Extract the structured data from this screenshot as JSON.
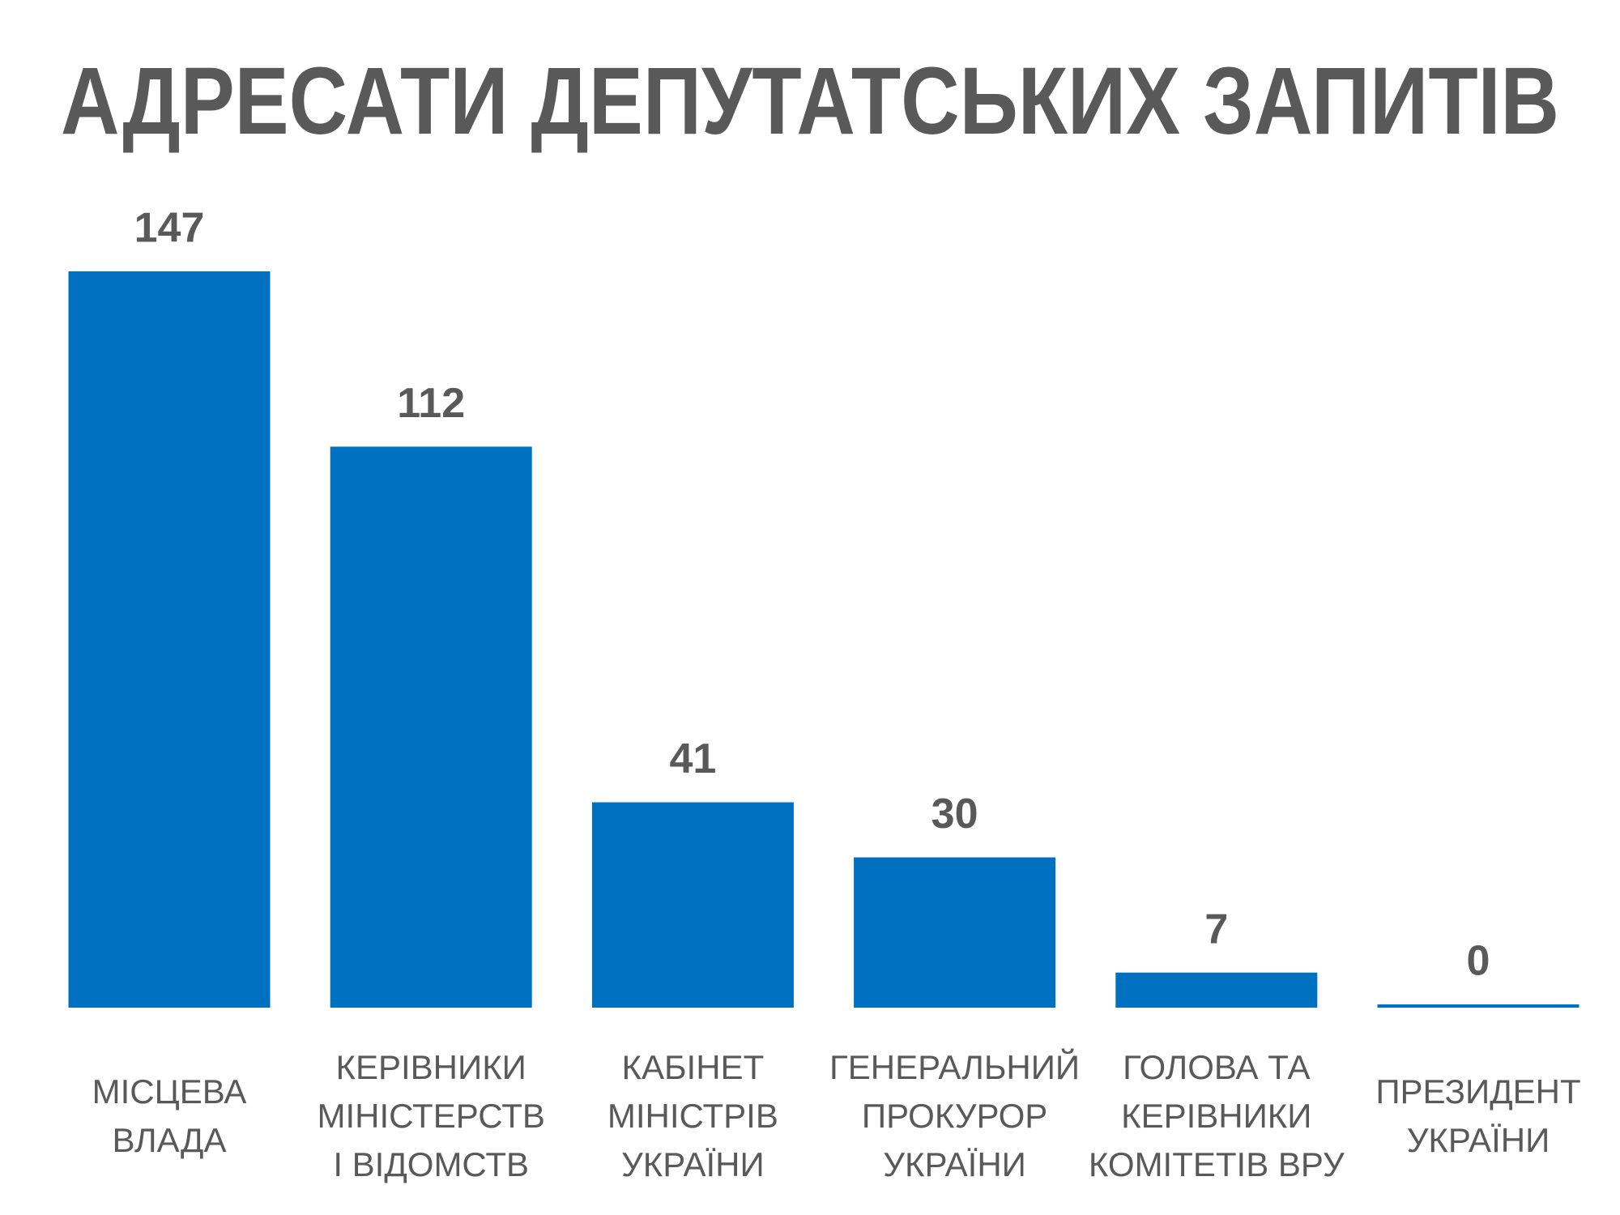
{
  "chart_data": {
    "type": "bar",
    "title": "АДРЕСАТИ ДЕПУТАТСЬКИХ ЗАПИТІВ",
    "categories": [
      "МІСЦЕВА\nВЛАДА",
      "КЕРІВНИКИ\nМІНІСТЕРСТВ\nІ ВІДОМСТВ",
      "КАБІНЕТ\nМІНІСТРІВ\nУКРАЇНИ",
      "ГЕНЕРАЛЬНИЙ\nПРОКУРОР\nУКРАЇНИ",
      "ГОЛОВА ТА\nКЕРІВНИКИ\nКОМІТЕТІВ ВРУ",
      "ПРЕЗИДЕНТ\nУКРАЇНИ"
    ],
    "values": [
      147,
      112,
      41,
      30,
      7,
      0
    ],
    "color": "#0070c0"
  }
}
